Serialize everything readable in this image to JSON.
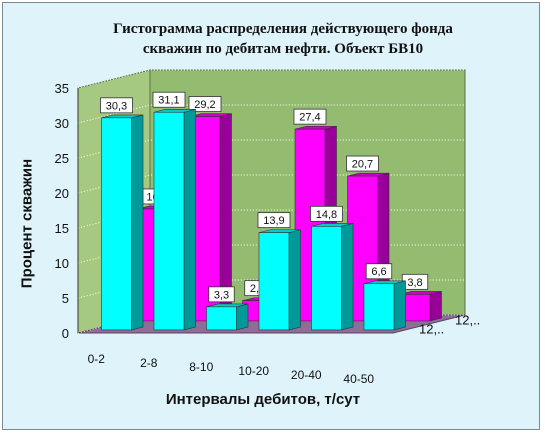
{
  "chart_data": {
    "type": "bar",
    "title_line1": "Гистограмма распределения действующего фонда",
    "title_line2": "скважин по дебитам нефти. Объект БВ10",
    "xlabel": "Интервалы дебитов, т/сут",
    "ylabel": "Процент скважин",
    "ylim": [
      0,
      35
    ],
    "yticks": [
      "0",
      "5",
      "10",
      "15",
      "20",
      "25",
      "30",
      "35"
    ],
    "grid": true,
    "categories": [
      "0-2",
      "2-8",
      "8-10",
      "10-20",
      "20-40",
      "40-50"
    ],
    "series": [
      {
        "name": "12,..",
        "color": "#ff00ff",
        "values": [
          16,
          29.2,
          2.9,
          27.4,
          20.7,
          3.8
        ],
        "labels": [
          "16",
          "29,2",
          "2,9",
          "27,4",
          "20,7",
          "3,8"
        ]
      },
      {
        "name": "12,..",
        "color": "#00ffff",
        "values": [
          30.3,
          31.1,
          3.3,
          13.9,
          14.8,
          6.6
        ],
        "labels": [
          "30,3",
          "31,1",
          "3,3",
          "13,9",
          "14,8",
          "6,6"
        ]
      }
    ]
  }
}
